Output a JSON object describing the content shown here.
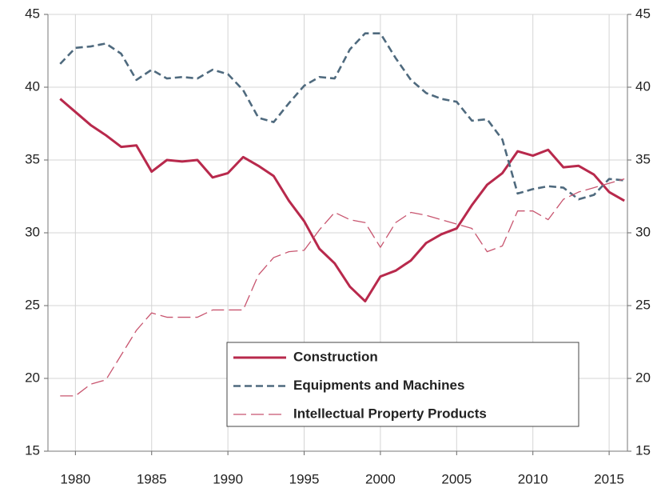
{
  "chart_data": {
    "type": "line",
    "x": [
      1979,
      1980,
      1981,
      1982,
      1983,
      1984,
      1985,
      1986,
      1987,
      1988,
      1989,
      1990,
      1991,
      1992,
      1993,
      1994,
      1995,
      1996,
      1997,
      1998,
      1999,
      2000,
      2001,
      2002,
      2003,
      2004,
      2005,
      2006,
      2007,
      2008,
      2009,
      2010,
      2011,
      2012,
      2013,
      2014,
      2015,
      2016
    ],
    "series": [
      {
        "name": "Construction",
        "color": "#b8294c",
        "dash": "solid",
        "values": [
          39.2,
          38.3,
          37.4,
          36.7,
          35.9,
          36.0,
          34.2,
          35.0,
          34.9,
          35.0,
          33.8,
          34.1,
          35.2,
          34.6,
          33.9,
          32.2,
          30.8,
          28.9,
          27.9,
          26.3,
          25.3,
          27.0,
          27.4,
          28.1,
          29.3,
          29.9,
          30.3,
          31.9,
          33.3,
          34.1,
          35.6,
          35.3,
          35.7,
          34.5,
          34.6,
          34.0,
          32.8,
          32.2
        ]
      },
      {
        "name": "Equipments and Machines",
        "color": "#4f6a7e",
        "dash": "dashed",
        "values": [
          41.6,
          42.7,
          42.8,
          43.0,
          42.3,
          40.5,
          41.2,
          40.6,
          40.7,
          40.6,
          41.2,
          40.9,
          39.8,
          37.9,
          37.6,
          38.9,
          40.1,
          40.7,
          40.6,
          42.6,
          43.7,
          43.7,
          42.0,
          40.5,
          39.6,
          39.2,
          39.0,
          37.7,
          37.8,
          36.4,
          32.7,
          33.0,
          33.2,
          33.1,
          32.3,
          32.6,
          33.7,
          33.6
        ]
      },
      {
        "name": "Intellectual Property Products",
        "color": "#c8556f",
        "dash": "longdash",
        "values": [
          18.8,
          18.8,
          19.6,
          19.9,
          21.6,
          23.3,
          24.5,
          24.2,
          24.2,
          24.2,
          24.7,
          24.7,
          24.7,
          27.1,
          28.3,
          28.7,
          28.8,
          30.2,
          31.4,
          30.9,
          30.7,
          29.0,
          30.7,
          31.4,
          31.2,
          30.9,
          30.6,
          30.3,
          28.7,
          29.1,
          31.5,
          31.5,
          30.9,
          32.3,
          32.8,
          33.1,
          33.4,
          33.7
        ]
      }
    ],
    "xlim": [
      1978.2,
      2016.2
    ],
    "xticks": [
      1980,
      1985,
      1990,
      1995,
      2000,
      2005,
      2010,
      2015
    ],
    "ylim": [
      15,
      45
    ],
    "yticks": [
      15,
      20,
      25,
      30,
      35,
      40,
      45
    ],
    "grid": true
  }
}
